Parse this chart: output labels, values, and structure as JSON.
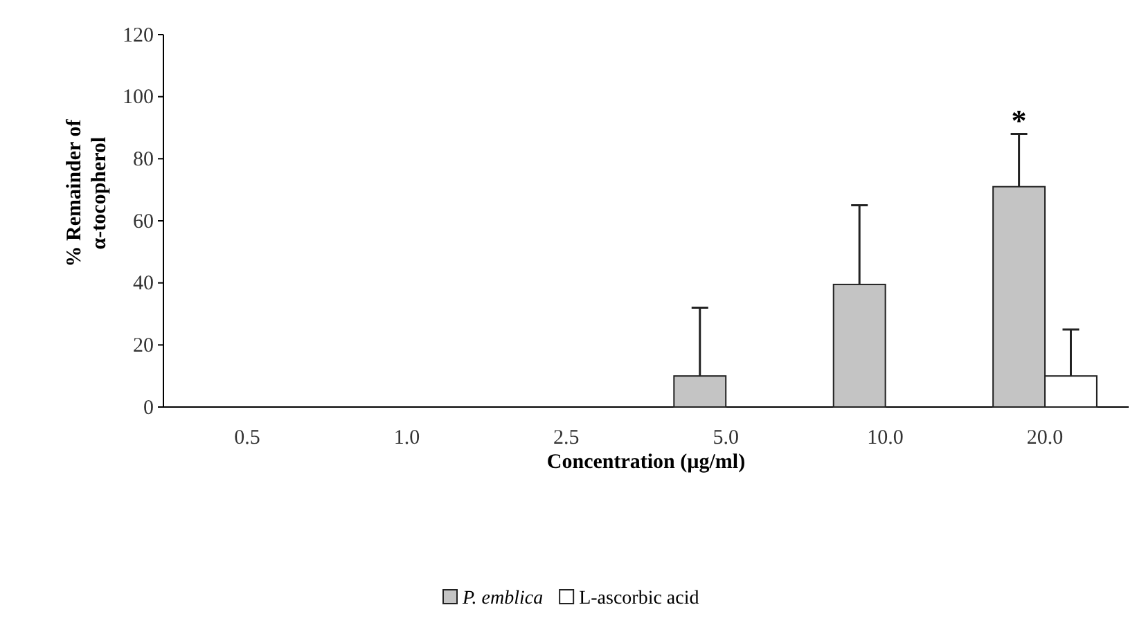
{
  "chart_data": {
    "type": "bar",
    "xlabel": "Concentration (µg/ml)",
    "ylabel": "% Remainder of α-tocopherol",
    "categories": [
      "0.5",
      "1.0",
      "2.5",
      "5.0",
      "10.0",
      "20.0"
    ],
    "series": [
      {
        "name": "P. emblica",
        "color": "#c4c4c4",
        "values": [
          0,
          0,
          0,
          10,
          39.5,
          71
        ],
        "errors": [
          null,
          null,
          null,
          [
            10,
            32
          ],
          [
            39.5,
            65
          ],
          [
            71,
            88
          ]
        ]
      },
      {
        "name": "L-ascorbic acid",
        "color": "#ffffff",
        "values": [
          0,
          0,
          0,
          0,
          0,
          10
        ],
        "errors": [
          null,
          null,
          null,
          null,
          null,
          [
            10,
            25
          ]
        ]
      }
    ],
    "ylim": [
      0,
      120
    ],
    "yticks": [
      0,
      20,
      40,
      60,
      80,
      100,
      120
    ],
    "annotations": [
      "*"
    ],
    "legend": "bottom"
  }
}
